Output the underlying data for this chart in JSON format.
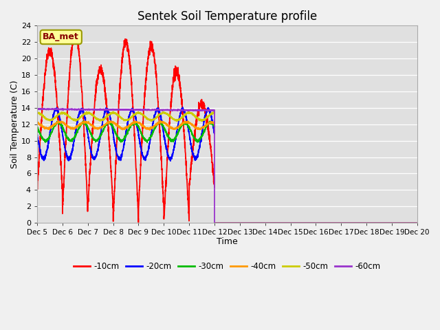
{
  "title": "Sentek Soil Temperature profile",
  "xlabel": "Time",
  "ylabel": "Soil Temperature (C)",
  "ylim": [
    0,
    24
  ],
  "annotation": "BA_met",
  "x_tick_labels": [
    "Dec 5",
    "Dec 6",
    "Dec 7",
    "Dec 8",
    "Dec 9",
    "Dec 10",
    "Dec 11",
    "Dec 12",
    "Dec 13",
    "Dec 14",
    "Dec 15",
    "Dec 16",
    "Dec 17",
    "Dec 18",
    "Dec 19",
    "Dec 20"
  ],
  "series_colors": [
    "#ff0000",
    "#0000ff",
    "#00bb00",
    "#ff9900",
    "#cccc00",
    "#9933cc"
  ],
  "series_labels": [
    "-10cm",
    "-20cm",
    "-30cm",
    "-40cm",
    "-50cm",
    "-60cm"
  ],
  "active_days": 7,
  "total_days": 15,
  "figsize": [
    6.4,
    4.8
  ],
  "dpi": 100,
  "fig_facecolor": "#f0f0f0",
  "ax_facecolor": "#e0e0e0",
  "grid_color": "white",
  "annotation_facecolor": "#ffff99",
  "annotation_edgecolor": "#999900",
  "annotation_textcolor": "#880000"
}
